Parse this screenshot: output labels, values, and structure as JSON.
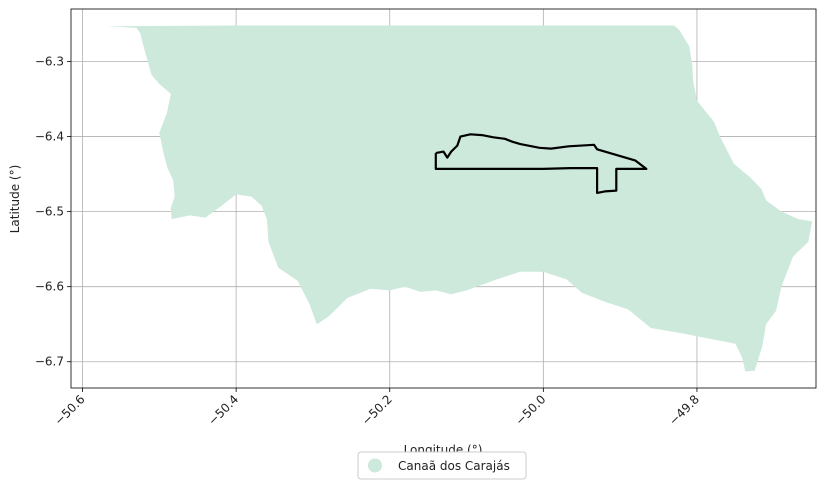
{
  "axes": {
    "xlabel": "Longitude (°)",
    "ylabel": "Latitude (°)",
    "xlim": [
      -50.615,
      -49.645
    ],
    "ylim": [
      -6.735,
      -6.23
    ],
    "xticks": [
      -50.6,
      -50.4,
      -50.2,
      -50.0,
      -49.8
    ],
    "yticks": [
      -6.3,
      -6.4,
      -6.5,
      -6.6,
      -6.7
    ],
    "grid": true
  },
  "xtick_labels": [
    "−50.6",
    "−50.4",
    "−50.2",
    "−50.0",
    "−49.8"
  ],
  "ytick_labels": [
    "−6.3",
    "−6.4",
    "−6.5",
    "−6.6",
    "−6.7"
  ],
  "legend": {
    "placement": "bottom-center",
    "entries": [
      {
        "label": "Canaã dos Carajás",
        "color": "#cde9dc"
      }
    ]
  },
  "colors": {
    "municipality_fill": "#cde9dc",
    "outline": "#000000",
    "grid": "#b0b0b0"
  },
  "municipality": {
    "name": "Canaã dos Carajás",
    "boundary_lonlat": [
      [
        -50.569,
        -6.253
      ],
      [
        -50.53,
        -6.255
      ],
      [
        -50.525,
        -6.262
      ],
      [
        -50.52,
        -6.282
      ],
      [
        -50.515,
        -6.3
      ],
      [
        -50.51,
        -6.318
      ],
      [
        -50.5,
        -6.33
      ],
      [
        -50.485,
        -6.343
      ],
      [
        -50.49,
        -6.368
      ],
      [
        -50.5,
        -6.395
      ],
      [
        -50.495,
        -6.42
      ],
      [
        -50.49,
        -6.44
      ],
      [
        -50.482,
        -6.458
      ],
      [
        -50.48,
        -6.48
      ],
      [
        -50.485,
        -6.495
      ],
      [
        -50.484,
        -6.51
      ],
      [
        -50.46,
        -6.505
      ],
      [
        -50.44,
        -6.508
      ],
      [
        -50.42,
        -6.493
      ],
      [
        -50.4,
        -6.477
      ],
      [
        -50.38,
        -6.48
      ],
      [
        -50.367,
        -6.492
      ],
      [
        -50.36,
        -6.51
      ],
      [
        -50.358,
        -6.54
      ],
      [
        -50.345,
        -6.575
      ],
      [
        -50.32,
        -6.592
      ],
      [
        -50.305,
        -6.622
      ],
      [
        -50.295,
        -6.65
      ],
      [
        -50.28,
        -6.64
      ],
      [
        -50.255,
        -6.615
      ],
      [
        -50.225,
        -6.603
      ],
      [
        -50.2,
        -6.605
      ],
      [
        -50.18,
        -6.6
      ],
      [
        -50.16,
        -6.607
      ],
      [
        -50.14,
        -6.605
      ],
      [
        -50.12,
        -6.61
      ],
      [
        -50.1,
        -6.605
      ],
      [
        -50.06,
        -6.59
      ],
      [
        -50.03,
        -6.58
      ],
      [
        -50.0,
        -6.58
      ],
      [
        -49.97,
        -6.59
      ],
      [
        -49.95,
        -6.608
      ],
      [
        -49.92,
        -6.62
      ],
      [
        -49.89,
        -6.63
      ],
      [
        -49.86,
        -6.655
      ],
      [
        -49.82,
        -6.662
      ],
      [
        -49.78,
        -6.67
      ],
      [
        -49.75,
        -6.676
      ],
      [
        -49.741,
        -6.695
      ],
      [
        -49.737,
        -6.713
      ],
      [
        -49.725,
        -6.712
      ],
      [
        -49.715,
        -6.68
      ],
      [
        -49.71,
        -6.65
      ],
      [
        -49.697,
        -6.632
      ],
      [
        -49.69,
        -6.6
      ],
      [
        -49.675,
        -6.56
      ],
      [
        -49.655,
        -6.54
      ],
      [
        -49.65,
        -6.513
      ],
      [
        -49.668,
        -6.51
      ],
      [
        -49.69,
        -6.5
      ],
      [
        -49.71,
        -6.485
      ],
      [
        -49.716,
        -6.47
      ],
      [
        -49.73,
        -6.455
      ],
      [
        -49.752,
        -6.436
      ],
      [
        -49.76,
        -6.42
      ],
      [
        -49.77,
        -6.4
      ],
      [
        -49.778,
        -6.38
      ],
      [
        -49.79,
        -6.365
      ],
      [
        -49.8,
        -6.352
      ],
      [
        -49.805,
        -6.325
      ],
      [
        -49.806,
        -6.305
      ],
      [
        -49.81,
        -6.28
      ],
      [
        -49.823,
        -6.258
      ],
      [
        -49.83,
        -6.252
      ],
      [
        -50.0,
        -6.252
      ],
      [
        -50.2,
        -6.252
      ],
      [
        -50.4,
        -6.252
      ],
      [
        -50.569,
        -6.253
      ]
    ]
  },
  "highlight_area": {
    "boundary_lonlat": [
      [
        -50.14,
        -6.422
      ],
      [
        -50.13,
        -6.42
      ],
      [
        -50.125,
        -6.428
      ],
      [
        -50.12,
        -6.42
      ],
      [
        -50.112,
        -6.412
      ],
      [
        -50.108,
        -6.4
      ],
      [
        -50.095,
        -6.397
      ],
      [
        -50.08,
        -6.398
      ],
      [
        -50.065,
        -6.401
      ],
      [
        -50.05,
        -6.403
      ],
      [
        -50.04,
        -6.407
      ],
      [
        -50.03,
        -6.41
      ],
      [
        -50.02,
        -6.412
      ],
      [
        -50.005,
        -6.415
      ],
      [
        -49.99,
        -6.416
      ],
      [
        -49.967,
        -6.413
      ],
      [
        -49.934,
        -6.411
      ],
      [
        -49.93,
        -6.417
      ],
      [
        -49.88,
        -6.432
      ],
      [
        -49.866,
        -6.443
      ],
      [
        -49.905,
        -6.443
      ],
      [
        -49.905,
        -6.472
      ],
      [
        -49.92,
        -6.473
      ],
      [
        -49.93,
        -6.475
      ],
      [
        -49.93,
        -6.442
      ],
      [
        -49.965,
        -6.442
      ],
      [
        -50.0,
        -6.443
      ],
      [
        -50.05,
        -6.443
      ],
      [
        -50.1,
        -6.443
      ],
      [
        -50.14,
        -6.443
      ],
      [
        -50.14,
        -6.422
      ]
    ]
  }
}
